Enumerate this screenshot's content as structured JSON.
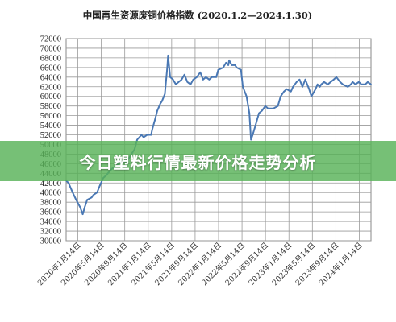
{
  "chart_data": {
    "type": "line",
    "title": "中国再生资源废铜价格指数 (2020.1.2—2024.1.30)",
    "xlabel": "",
    "ylabel": "",
    "ylim": [
      30000,
      72000
    ],
    "yticks": [
      30000,
      32000,
      34000,
      36000,
      38000,
      40000,
      42000,
      44000,
      46000,
      48000,
      50000,
      52000,
      54000,
      56000,
      58000,
      60000,
      62000,
      64000,
      66000,
      68000,
      70000,
      72000
    ],
    "xticks": [
      "2020年1月14日",
      "2020年5月14日",
      "2020年9月14日",
      "2021年1月14日",
      "2021年5月14日",
      "2021年9月14日",
      "2022年1月14日",
      "2022年5月14日",
      "2022年9月14日",
      "2023年1月14日",
      "2023年5月14日",
      "2023年9月14日",
      "2024年1月14日"
    ],
    "grid": true,
    "legend": "none",
    "line_color": "#4a78b4",
    "series": [
      {
        "x": [
          "2020-01-02",
          "2020-01-14",
          "2020-02-03",
          "2020-02-20",
          "2020-03-10",
          "2020-03-23",
          "2020-04-02",
          "2020-04-14",
          "2020-05-06",
          "2020-05-14",
          "2020-06-01",
          "2020-06-15",
          "2020-07-01",
          "2020-07-14",
          "2020-08-03",
          "2020-08-14",
          "2020-09-01",
          "2020-09-14",
          "2020-10-14",
          "2020-11-02",
          "2020-11-16",
          "2020-12-01",
          "2020-12-14",
          "2021-01-04",
          "2021-01-14",
          "2021-02-01",
          "2021-02-20",
          "2021-02-25",
          "2021-03-10",
          "2021-03-22",
          "2021-04-06",
          "2021-04-14",
          "2021-04-28",
          "2021-05-10",
          "2021-05-14",
          "2021-05-24",
          "2021-06-07",
          "2021-06-21",
          "2021-07-05",
          "2021-07-19",
          "2021-08-02",
          "2021-08-16",
          "2021-09-01",
          "2021-09-14",
          "2021-10-01",
          "2021-10-18",
          "2021-11-01",
          "2021-11-15",
          "2021-12-01",
          "2021-12-14",
          "2022-01-04",
          "2022-01-14",
          "2022-02-07",
          "2022-02-21",
          "2022-03-04",
          "2022-03-08",
          "2022-03-21",
          "2022-04-06",
          "2022-04-14",
          "2022-05-05",
          "2022-05-14",
          "2022-06-01",
          "2022-06-15",
          "2022-06-23",
          "2022-07-01",
          "2022-07-15",
          "2022-08-01",
          "2022-08-15",
          "2022-09-01",
          "2022-09-14",
          "2022-10-10",
          "2022-11-01",
          "2022-11-15",
          "2022-12-01",
          "2022-12-14",
          "2023-01-04",
          "2023-01-14",
          "2023-02-01",
          "2023-02-15",
          "2023-03-01",
          "2023-03-15",
          "2023-04-03",
          "2023-04-14",
          "2023-05-04",
          "2023-05-14",
          "2023-05-25",
          "2023-06-01",
          "2023-06-15",
          "2023-07-03",
          "2023-07-17",
          "2023-08-01",
          "2023-08-14",
          "2023-09-01",
          "2023-09-14",
          "2023-10-09",
          "2023-10-23",
          "2023-11-01",
          "2023-11-15",
          "2023-12-01",
          "2023-12-14",
          "2024-01-02",
          "2024-01-14",
          "2024-01-30"
        ],
        "values": [
          42500,
          42000,
          40000,
          38500,
          37000,
          35500,
          37000,
          38500,
          39000,
          39500,
          40000,
          41500,
          43000,
          43500,
          44500,
          45000,
          45500,
          46000,
          46500,
          47000,
          48000,
          49000,
          51000,
          52000,
          51500,
          52000,
          52000,
          53000,
          55000,
          57000,
          58500,
          59000,
          60500,
          66000,
          68500,
          64000,
          63500,
          62500,
          63000,
          63500,
          64500,
          63000,
          62500,
          63500,
          64000,
          65000,
          63500,
          64000,
          63500,
          64000,
          64000,
          65500,
          66000,
          67000,
          66500,
          67500,
          66500,
          66500,
          66000,
          65500,
          62000,
          60000,
          56500,
          51000,
          52000,
          54000,
          56500,
          57000,
          58000,
          57500,
          57500,
          58000,
          60000,
          61000,
          61500,
          61000,
          62000,
          63000,
          63500,
          62000,
          63500,
          61500,
          60000,
          61500,
          62500,
          62000,
          62500,
          63000,
          62500,
          63000,
          63500,
          64000,
          63000,
          62500,
          62000,
          62500,
          63000,
          62500,
          63000,
          62500,
          62500,
          63000,
          62500
        ]
      }
    ]
  },
  "banner": {
    "text": "今日塑料行情最新价格走势分析"
  }
}
